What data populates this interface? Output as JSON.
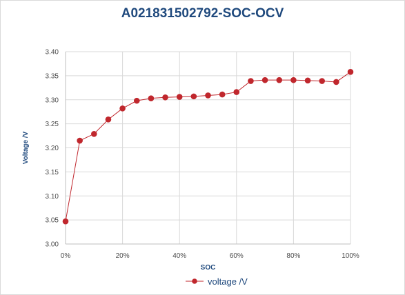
{
  "chart_data": {
    "type": "line",
    "title": "A021831502792-SOC-OCV",
    "xlabel": "SOC",
    "ylabel": "Voltage /V",
    "x": [
      0,
      5,
      10,
      15,
      20,
      25,
      30,
      35,
      40,
      45,
      50,
      55,
      60,
      65,
      70,
      75,
      80,
      85,
      90,
      95,
      100
    ],
    "series": [
      {
        "name": "voltage /V",
        "color": "#c0272d",
        "values": [
          3.047,
          3.215,
          3.229,
          3.259,
          3.282,
          3.298,
          3.303,
          3.305,
          3.306,
          3.307,
          3.309,
          3.311,
          3.316,
          3.339,
          3.341,
          3.341,
          3.341,
          3.34,
          3.339,
          3.337,
          3.358
        ]
      }
    ],
    "xlim": [
      0,
      100
    ],
    "ylim": [
      3.0,
      3.4
    ],
    "x_ticks": [
      "0%",
      "20%",
      "40%",
      "60%",
      "80%",
      "100%"
    ],
    "y_ticks": [
      "3.00",
      "3.05",
      "3.10",
      "3.15",
      "3.20",
      "3.25",
      "3.30",
      "3.35",
      "3.40"
    ],
    "grid": true,
    "legend_position": "bottom"
  }
}
